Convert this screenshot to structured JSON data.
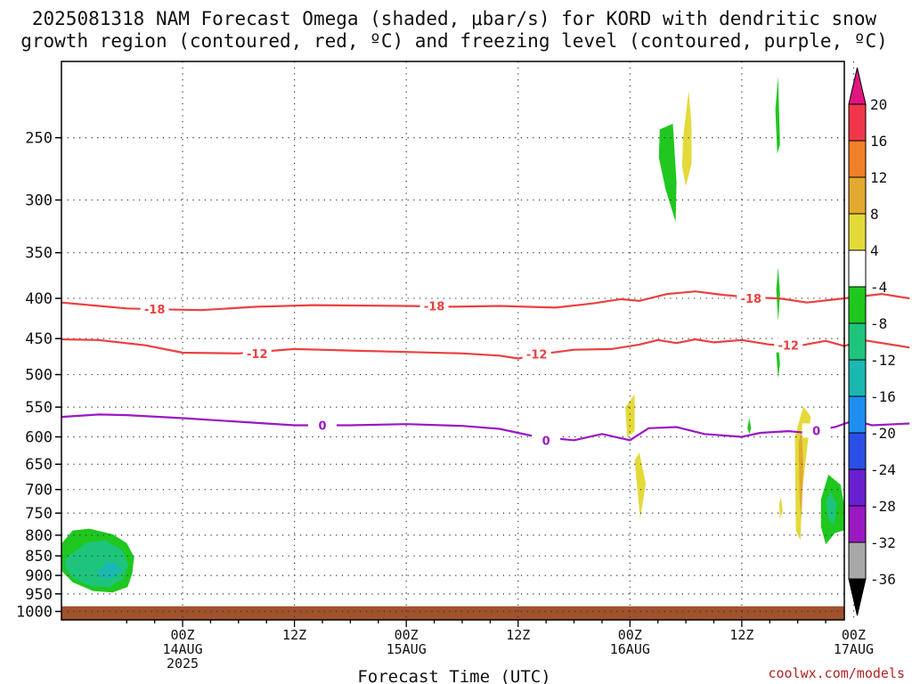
{
  "chart_data": {
    "type": "heatmap",
    "title_line1": "2025081318 NAM Forecast Omega (shaded, μbar/s) for KORD with dendritic snow",
    "title_line2": "growth region (contoured, red, ºC) and freezing level (contoured, purple, ºC)",
    "xlabel": "Forecast Time (UTC)",
    "credit": "coolwx.com/models",
    "y_scale": "log-pressure",
    "y_reversed": true,
    "ylim": [
      200,
      1025
    ],
    "xlim_hours_from_init": [
      -7,
      77
    ],
    "grid": true,
    "y_ticks": [
      250,
      300,
      350,
      400,
      450,
      500,
      550,
      600,
      650,
      700,
      750,
      800,
      850,
      900,
      950,
      1000
    ],
    "x_ticks": [
      {
        "hour": 6,
        "line1": "00Z",
        "line2": "14AUG",
        "line3": "2025"
      },
      {
        "hour": 18,
        "line1": "12Z",
        "line2": "",
        "line3": ""
      },
      {
        "hour": 30,
        "line1": "00Z",
        "line2": "15AUG",
        "line3": ""
      },
      {
        "hour": 42,
        "line1": "12Z",
        "line2": "",
        "line3": ""
      },
      {
        "hour": 54,
        "line1": "00Z",
        "line2": "16AUG",
        "line3": ""
      },
      {
        "hour": 66,
        "line1": "12Z",
        "line2": "",
        "line3": ""
      },
      {
        "hour": 78,
        "line1": "00Z",
        "line2": "17AUG",
        "line3": ""
      }
    ],
    "colorbar": {
      "labels": [
        "20",
        "16",
        "12",
        "8",
        "4",
        "-4",
        "-8",
        "-12",
        "-16",
        "-20",
        "-24",
        "-28",
        "-32",
        "-36"
      ],
      "colors": [
        "#f0364a",
        "#f07f2a",
        "#e2a92e",
        "#e3da3a",
        "#ffffff",
        "#1fc71f",
        "#1ec47c",
        "#1ab8b0",
        "#1e8ef0",
        "#2b4fe6",
        "#6a1fd0",
        "#9a19c2",
        "#a8a8a8"
      ],
      "top_extend_color": "#e0157f",
      "bottom_extend_color": "#000000"
    },
    "contours": [
      {
        "label": "-18",
        "color": "#ec4040",
        "points": [
          [
            -7,
            405
          ],
          [
            -3,
            409
          ],
          [
            0,
            412
          ],
          [
            3,
            413
          ],
          [
            8,
            414
          ],
          [
            14,
            410
          ],
          [
            20,
            408
          ],
          [
            30,
            409
          ],
          [
            35,
            410
          ],
          [
            40,
            409
          ],
          [
            46,
            411
          ],
          [
            50,
            406
          ],
          [
            53,
            401
          ],
          [
            55,
            403
          ],
          [
            58,
            395
          ],
          [
            61,
            392
          ],
          [
            64,
            396
          ],
          [
            67,
            399
          ],
          [
            70,
            400
          ],
          [
            73,
            405
          ],
          [
            77,
            400
          ],
          [
            81,
            395
          ],
          [
            84,
            400
          ]
        ],
        "label_at": [
          [
            3,
            413
          ],
          [
            33,
            409
          ],
          [
            67,
            400
          ]
        ]
      },
      {
        "label": "-12",
        "color": "#ec4040",
        "points": [
          [
            -7,
            451
          ],
          [
            -3,
            452
          ],
          [
            2,
            459
          ],
          [
            6,
            469
          ],
          [
            12,
            470
          ],
          [
            18,
            464
          ],
          [
            24,
            466
          ],
          [
            30,
            468
          ],
          [
            36,
            470
          ],
          [
            40,
            473
          ],
          [
            42,
            477
          ],
          [
            45,
            470
          ],
          [
            48,
            465
          ],
          [
            52,
            464
          ],
          [
            55,
            458
          ],
          [
            57,
            452
          ],
          [
            59,
            456
          ],
          [
            61,
            451
          ],
          [
            63,
            455
          ],
          [
            66,
            452
          ],
          [
            69,
            458
          ],
          [
            72,
            460
          ],
          [
            75,
            453
          ],
          [
            77,
            460
          ],
          [
            79,
            452
          ],
          [
            84,
            462
          ]
        ],
        "label_at": [
          [
            14,
            470
          ],
          [
            44,
            471
          ],
          [
            71,
            459
          ]
        ]
      },
      {
        "label": "0",
        "color": "#9b17c6",
        "points": [
          [
            -7,
            566
          ],
          [
            -3,
            562
          ],
          [
            0,
            563
          ],
          [
            6,
            568
          ],
          [
            12,
            574
          ],
          [
            18,
            580
          ],
          [
            24,
            580
          ],
          [
            30,
            578
          ],
          [
            36,
            581
          ],
          [
            40,
            586
          ],
          [
            44,
            600
          ],
          [
            48,
            606
          ],
          [
            51,
            595
          ],
          [
            54,
            606
          ],
          [
            56,
            585
          ],
          [
            59,
            583
          ],
          [
            62,
            595
          ],
          [
            66,
            600
          ],
          [
            68,
            593
          ],
          [
            71,
            590
          ],
          [
            73,
            593
          ],
          [
            74,
            588
          ],
          [
            76,
            583
          ],
          [
            78,
            572
          ],
          [
            80,
            580
          ],
          [
            84,
            577
          ]
        ],
        "label_at": [
          [
            21,
            580
          ],
          [
            45,
            606
          ],
          [
            74,
            589
          ]
        ]
      }
    ],
    "omega_regions": [
      {
        "color": "#1fc71f",
        "points": [
          [
            -7.0,
            820
          ],
          [
            -5.8,
            789
          ],
          [
            -4,
            785
          ],
          [
            -1.5,
            798
          ],
          [
            0,
            819
          ],
          [
            0.8,
            853
          ],
          [
            0.6,
            895
          ],
          [
            0.1,
            931
          ],
          [
            -1.5,
            946
          ],
          [
            -3.6,
            942
          ],
          [
            -5.8,
            918
          ],
          [
            -7.0,
            888
          ]
        ]
      },
      {
        "color": "#1ec47c",
        "points": [
          [
            -6.6,
            857
          ],
          [
            -4.3,
            818
          ],
          [
            -2.4,
            812
          ],
          [
            -0.5,
            835
          ],
          [
            0.2,
            873
          ],
          [
            -0.4,
            909
          ],
          [
            -1.9,
            932
          ],
          [
            -4,
            928
          ],
          [
            -5.8,
            906
          ],
          [
            -6.6,
            880
          ]
        ]
      },
      {
        "color": "#1ab8b0",
        "points": [
          [
            -3.2,
            893
          ],
          [
            -2,
            864
          ],
          [
            -1,
            868
          ],
          [
            -0.6,
            888
          ],
          [
            -1.5,
            906
          ],
          [
            -2.7,
            907
          ]
        ]
      },
      {
        "color": "#1fc71f",
        "points": [
          [
            57.2,
            244
          ],
          [
            58.6,
            240
          ],
          [
            59.0,
            285
          ],
          [
            58.9,
            320
          ],
          [
            57.8,
            290
          ],
          [
            57.1,
            265
          ]
        ]
      },
      {
        "color": "#e3da3a",
        "points": [
          [
            59.7,
            250
          ],
          [
            60.3,
            218
          ],
          [
            60.6,
            240
          ],
          [
            60.6,
            270
          ],
          [
            60.0,
            288
          ],
          [
            59.6,
            272
          ]
        ]
      },
      {
        "color": "#1fc71f",
        "points": [
          [
            69.6,
            230
          ],
          [
            69.9,
            209
          ],
          [
            70.1,
            255
          ],
          [
            69.8,
            262
          ]
        ]
      },
      {
        "color": "#1fc71f",
        "points": [
          [
            69.7,
            390
          ],
          [
            69.9,
            365
          ],
          [
            70.1,
            395
          ],
          [
            69.9,
            428
          ]
        ]
      },
      {
        "color": "#1fc71f",
        "points": [
          [
            69.7,
            470
          ],
          [
            69.9,
            455
          ],
          [
            70.1,
            485
          ],
          [
            69.9,
            505
          ]
        ]
      },
      {
        "color": "#e3da3a",
        "points": [
          [
            53.5,
            550
          ],
          [
            54.5,
            530
          ],
          [
            54.5,
            590
          ],
          [
            53.7,
            600
          ]
        ]
      },
      {
        "color": "#e3da3a",
        "points": [
          [
            54.5,
            643
          ],
          [
            55.0,
            628
          ],
          [
            55.7,
            688
          ],
          [
            55.1,
            762
          ],
          [
            54.8,
            700
          ]
        ]
      },
      {
        "color": "#1fc71f",
        "points": [
          [
            66.6,
            585
          ],
          [
            66.8,
            568
          ],
          [
            67.0,
            585
          ],
          [
            66.8,
            595
          ]
        ]
      },
      {
        "color": "#e3da3a",
        "points": [
          [
            71.7,
            600
          ],
          [
            72.6,
            549
          ],
          [
            73.4,
            565
          ],
          [
            72.5,
            700
          ],
          [
            72.3,
            812
          ],
          [
            71.8,
            790
          ]
        ]
      },
      {
        "color": "#e2a92e",
        "points": [
          [
            72.1,
            610
          ],
          [
            72.4,
            590
          ],
          [
            72.6,
            650
          ],
          [
            72.4,
            760
          ],
          [
            72.2,
            720
          ]
        ]
      },
      {
        "color": "#e3da3a",
        "points": [
          [
            70.0,
            730
          ],
          [
            70.2,
            717
          ],
          [
            70.4,
            745
          ],
          [
            70.1,
            762
          ]
        ]
      },
      {
        "color": "#1fc71f",
        "points": [
          [
            74.5,
            720
          ],
          [
            75.3,
            670
          ],
          [
            76.6,
            690
          ],
          [
            77.1,
            745
          ],
          [
            77.6,
            785
          ],
          [
            76.0,
            795
          ],
          [
            75.0,
            822
          ],
          [
            74.5,
            780
          ]
        ]
      },
      {
        "color": "#1ec47c",
        "points": [
          [
            75.0,
            725
          ],
          [
            75.5,
            705
          ],
          [
            76.2,
            730
          ],
          [
            75.9,
            775
          ],
          [
            75.3,
            765
          ]
        ]
      }
    ],
    "ground": {
      "color": "#a0522d",
      "from_pressure": 985
    },
    "ground_bumps": [
      [
        -6.2,
        -4.6,
        988
      ],
      [
        -0.5,
        4.2,
        988
      ],
      [
        13.5,
        17.8,
        987
      ],
      [
        21,
        26,
        987
      ],
      [
        64.8,
        67.8,
        988
      ],
      [
        75.2,
        77.2,
        987
      ]
    ]
  }
}
